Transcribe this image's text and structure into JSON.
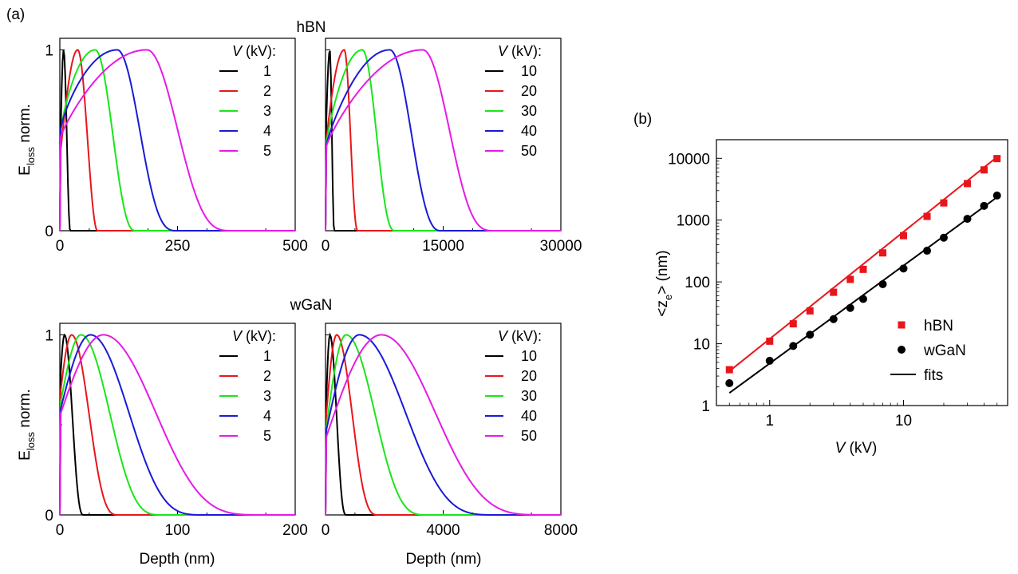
{
  "labels": {
    "panel_a": "(a)",
    "panel_b": "(b)",
    "row1_title": "hBN",
    "row2_title": "wGaN",
    "ylabel_main": "E",
    "ylabel_sub": "loss",
    "ylabel_rest": " norm.",
    "xlabel": "Depth (nm)",
    "legend_title_italic": "V",
    "legend_title_rest": " (kV):",
    "b_xlabel_italic": "V",
    "b_xlabel_rest": " (kV)",
    "b_ylabel_pre": "<z",
    "b_ylabel_sub": "e",
    "b_ylabel_post": "> (nm)"
  },
  "colors": {
    "series": [
      "#000000",
      "#e8161b",
      "#19e619",
      "#1a1ad6",
      "#e61ae6"
    ],
    "hbn": "#e8161b",
    "wgan": "#000000"
  },
  "chart_data": [
    {
      "id": "hbn_low",
      "type": "line",
      "material": "hBN",
      "xlim": [
        0,
        500
      ],
      "ylim": [
        0,
        1
      ],
      "xticks": [
        "0",
        "250",
        "500"
      ],
      "yticks": [
        "0",
        "1"
      ],
      "legend": [
        "1",
        "2",
        "3",
        "4",
        "5"
      ],
      "series": [
        {
          "name": "1",
          "peak_depth": 8,
          "surface": 0.3,
          "rise": 1.0,
          "fall": 1.0,
          "range": 22
        },
        {
          "name": "2",
          "peak_depth": 38,
          "surface": 0.4,
          "rise": 1.0,
          "fall": 1.0,
          "range": 80
        },
        {
          "name": "3",
          "peak_depth": 75,
          "surface": 0.5,
          "rise": 0.7,
          "fall": 1.2,
          "range": 160
        },
        {
          "name": "4",
          "peak_depth": 122,
          "surface": 0.53,
          "rise": 0.7,
          "fall": 1.6,
          "range": 250
        },
        {
          "name": "5",
          "peak_depth": 185,
          "surface": 0.5,
          "rise": 0.8,
          "fall": 1.8,
          "range": 370
        }
      ]
    },
    {
      "id": "hbn_high",
      "type": "line",
      "material": "hBN",
      "xlim": [
        0,
        30000
      ],
      "ylim": [
        0,
        1
      ],
      "xticks": [
        "0",
        "15000",
        "30000"
      ],
      "yticks": [],
      "legend": [
        "10",
        "20",
        "30",
        "40",
        "50"
      ],
      "series": [
        {
          "name": "10",
          "peak_depth": 550,
          "surface": 0.45,
          "rise": 1.0,
          "fall": 1.0,
          "range": 1100
        },
        {
          "name": "20",
          "peak_depth": 2400,
          "surface": 0.45,
          "rise": 0.9,
          "fall": 1.1,
          "range": 4100
        },
        {
          "name": "30",
          "peak_depth": 4700,
          "surface": 0.45,
          "rise": 0.8,
          "fall": 1.2,
          "range": 8800
        },
        {
          "name": "40",
          "peak_depth": 8200,
          "surface": 0.45,
          "rise": 0.8,
          "fall": 1.3,
          "range": 14700
        },
        {
          "name": "50",
          "peak_depth": 12400,
          "surface": 0.45,
          "rise": 0.8,
          "fall": 1.6,
          "range": 21500
        }
      ]
    },
    {
      "id": "wgan_low",
      "type": "line",
      "material": "wGaN",
      "xlim": [
        0,
        200
      ],
      "ylim": [
        0,
        1
      ],
      "xticks": [
        "0",
        "100",
        "200"
      ],
      "yticks": [
        "0",
        "1"
      ],
      "legend": [
        "1",
        "2",
        "3",
        "4",
        "5"
      ],
      "series": [
        {
          "name": "1",
          "peak_depth": 4,
          "surface": 0.7,
          "rise": 1.0,
          "fall": 1.3,
          "range": 20
        },
        {
          "name": "2",
          "peak_depth": 10,
          "surface": 0.65,
          "rise": 1.0,
          "fall": 1.6,
          "range": 50
        },
        {
          "name": "3",
          "peak_depth": 18,
          "surface": 0.6,
          "rise": 1.0,
          "fall": 1.8,
          "range": 88
        },
        {
          "name": "4",
          "peak_depth": 26,
          "surface": 0.57,
          "rise": 1.0,
          "fall": 2.0,
          "range": 125
        },
        {
          "name": "5",
          "peak_depth": 37,
          "surface": 0.55,
          "rise": 1.0,
          "fall": 2.2,
          "range": 178
        }
      ]
    },
    {
      "id": "wgan_high",
      "type": "line",
      "material": "wGaN",
      "xlim": [
        0,
        8000
      ],
      "ylim": [
        0,
        1
      ],
      "xticks": [
        "0",
        "4000",
        "8000"
      ],
      "yticks": [],
      "legend": [
        "10",
        "20",
        "30",
        "40",
        "50"
      ],
      "series": [
        {
          "name": "10",
          "peak_depth": 150,
          "surface": 0.5,
          "rise": 1.0,
          "fall": 1.3,
          "range": 700
        },
        {
          "name": "20",
          "peak_depth": 380,
          "surface": 0.5,
          "rise": 1.0,
          "fall": 1.6,
          "range": 1800
        },
        {
          "name": "30",
          "peak_depth": 700,
          "surface": 0.45,
          "rise": 1.0,
          "fall": 1.8,
          "range": 3500
        },
        {
          "name": "40",
          "peak_depth": 1150,
          "surface": 0.45,
          "rise": 1.0,
          "fall": 2.0,
          "range": 5900
        },
        {
          "name": "50",
          "peak_depth": 1900,
          "surface": 0.42,
          "rise": 1.0,
          "fall": 2.2,
          "range": 7700
        }
      ]
    },
    {
      "id": "penetration",
      "type": "scatter",
      "log_x": true,
      "log_y": true,
      "xlim": [
        0.4,
        60
      ],
      "ylim": [
        1,
        20000
      ],
      "xticks": [
        "1",
        "10"
      ],
      "yticks": [
        "1",
        "10",
        "100",
        "1000",
        "10000"
      ],
      "legend": [
        "hBN",
        "wGaN",
        "fits"
      ],
      "series": [
        {
          "name": "hBN",
          "marker": "square",
          "x": [
            0.5,
            1,
            1.5,
            2,
            3,
            4,
            5,
            7,
            10,
            15,
            20,
            30,
            40,
            50
          ],
          "y": [
            3.8,
            11,
            21,
            34,
            68,
            110,
            160,
            295,
            560,
            1150,
            1900,
            3900,
            6500,
            9900
          ]
        },
        {
          "name": "wGaN",
          "marker": "circle",
          "x": [
            0.5,
            1,
            1.5,
            2,
            3,
            4,
            5,
            7,
            10,
            15,
            20,
            30,
            40,
            50
          ],
          "y": [
            2.3,
            5.3,
            9.2,
            14,
            25,
            38,
            53,
            92,
            165,
            320,
            520,
            1050,
            1700,
            2500
          ]
        },
        {
          "name": "fits",
          "fit_for": "hBN",
          "x": [
            0.5,
            50
          ],
          "y": [
            3.6,
            10500
          ]
        },
        {
          "name": "fits",
          "fit_for": "wGaN",
          "x": [
            0.5,
            50
          ],
          "y": [
            1.6,
            2350
          ]
        }
      ]
    }
  ]
}
